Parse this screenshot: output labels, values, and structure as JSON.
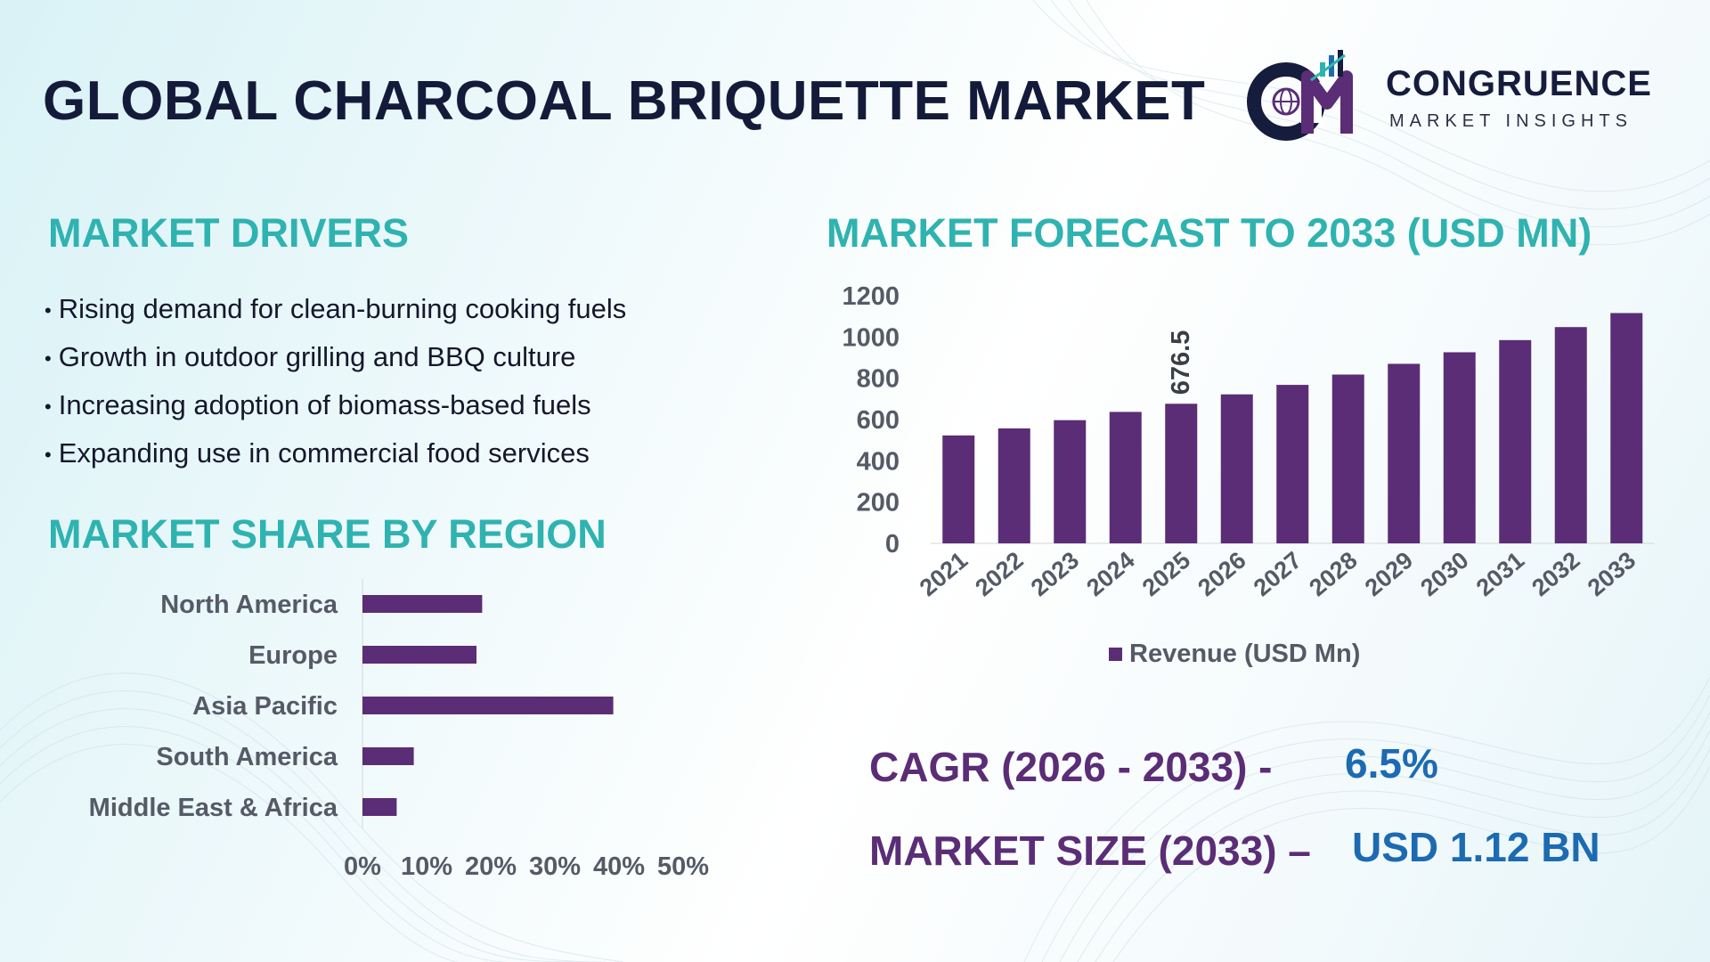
{
  "header": {
    "title": "GLOBAL CHARCOAL BRIQUETTE MARKET",
    "logo_brand": "CONGRUENCE",
    "logo_sub": "MARKET INSIGHTS"
  },
  "colors": {
    "accent_teal": "#2fb3b0",
    "bar_purple": "#5b2d76",
    "value_blue": "#1c6bb2",
    "title_navy": "#141b3a"
  },
  "drivers": {
    "title": "MARKET DRIVERS",
    "bullet": "•",
    "items": [
      "Rising demand for clean-burning cooking fuels",
      "Growth in outdoor grilling and BBQ culture",
      "Increasing adoption of biomass-based fuels",
      "Expanding use in commercial food services"
    ]
  },
  "region_section": {
    "title": "MARKET SHARE BY REGION"
  },
  "forecast_section": {
    "title": "MARKET FORECAST TO 2033 (USD MN)"
  },
  "kpis": {
    "cagr_label": "CAGR (2026 - 2033) -",
    "cagr_value": "6.5%",
    "size_label": "MARKET SIZE (2033) –",
    "size_value": "USD 1.12 BN"
  },
  "chart_data": [
    {
      "type": "bar",
      "orientation": "horizontal",
      "categories": [
        "North America",
        "Europe",
        "Asia Pacific",
        "South America",
        "Middle East & Africa"
      ],
      "values": [
        21,
        20,
        44,
        9,
        6
      ],
      "xticks": [
        "0%",
        "10%",
        "20%",
        "30%",
        "40%",
        "50%"
      ],
      "xlim": [
        0,
        50
      ],
      "grid": false
    },
    {
      "type": "bar",
      "categories": [
        "2021",
        "2022",
        "2023",
        "2024",
        "2025",
        "2026",
        "2027",
        "2028",
        "2029",
        "2030",
        "2031",
        "2032",
        "2033"
      ],
      "series": [
        {
          "name": "Revenue (USD Mn)",
          "values": [
            523,
            557,
            597,
            637,
            676.5,
            722,
            768,
            818,
            870,
            926,
            985,
            1048,
            1116
          ]
        }
      ],
      "data_labels": [
        {
          "category": "2025",
          "text": "676.5"
        }
      ],
      "yticks": [
        "0",
        "200",
        "400",
        "600",
        "800",
        "1000",
        "1200"
      ],
      "ylim": [
        0,
        1200
      ],
      "legend": "bottom",
      "grid": false
    }
  ]
}
